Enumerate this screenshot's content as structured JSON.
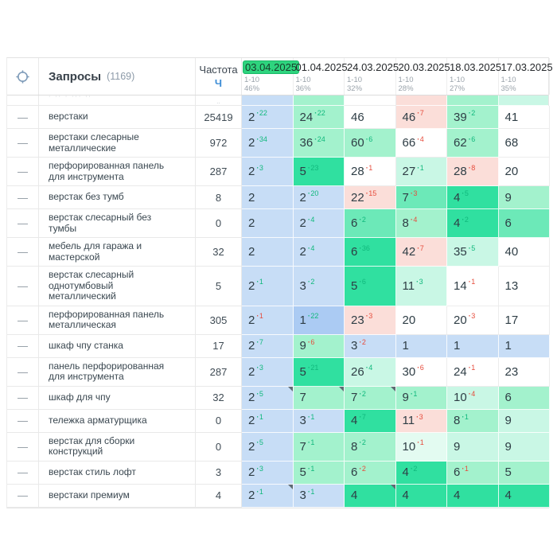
{
  "header": {
    "queries_label": "Запросы",
    "queries_count": "(1169)",
    "frequency_label": "Частота",
    "frequency_unit": "Ч",
    "range_label": "1-10",
    "dates": [
      {
        "date": "03.04.2025",
        "top10_percent": "46%",
        "selected": true
      },
      {
        "date": "01.04.2025",
        "top10_percent": "36%",
        "selected": false
      },
      {
        "date": "24.03.2025",
        "top10_percent": "32%",
        "selected": false
      },
      {
        "date": "20.03.2025",
        "top10_percent": "28%",
        "selected": false
      },
      {
        "date": "18.03.2025",
        "top10_percent": "27%",
        "selected": false
      },
      {
        "date": "17.03.2025",
        "top10_percent": "35%",
        "selected": false
      }
    ]
  },
  "icons": {
    "target_icon": "target-crosshair",
    "row_handle": "—"
  },
  "colors": {
    "selected_date_bg": "#2ed47e",
    "delta_up": "#10b87c",
    "delta_down": "#e64c3c",
    "B": "#c7ddf6",
    "B2": "#abcbf3",
    "W": "#ffffff",
    "P": "#fbded9",
    "G1": "#e3fbf1",
    "G2": "#c9f7e5",
    "G3": "#a3f2cd",
    "G4": "#6ce9b8",
    "G5": "#30e0a0"
  },
  "partial_row": {
    "cells": [
      {
        "bg": "B"
      },
      {
        "bg": "G3"
      },
      {
        "bg": "W"
      },
      {
        "bg": "P"
      },
      {
        "bg": "G3"
      },
      {
        "bg": "G2"
      }
    ]
  },
  "rows": [
    {
      "query": "верстаки",
      "frequency": "25419",
      "cells": [
        {
          "pos": "2",
          "d": "22",
          "dir": "up",
          "bg": "B"
        },
        {
          "pos": "24",
          "d": "22",
          "dir": "up",
          "bg": "G3"
        },
        {
          "pos": "46",
          "bg": "W"
        },
        {
          "pos": "46",
          "d": "7",
          "dir": "down",
          "bg": "P"
        },
        {
          "pos": "39",
          "d": "2",
          "dir": "up",
          "bg": "G3"
        },
        {
          "pos": "41",
          "bg": "W"
        }
      ]
    },
    {
      "query": "верстаки слесарные металлические",
      "frequency": "972",
      "cells": [
        {
          "pos": "2",
          "d": "34",
          "dir": "up",
          "bg": "B"
        },
        {
          "pos": "36",
          "d": "24",
          "dir": "up",
          "bg": "G3"
        },
        {
          "pos": "60",
          "d": "6",
          "dir": "up",
          "bg": "G3"
        },
        {
          "pos": "66",
          "d": "4",
          "dir": "down",
          "bg": "W"
        },
        {
          "pos": "62",
          "d": "6",
          "dir": "up",
          "bg": "G3"
        },
        {
          "pos": "68",
          "bg": "W"
        }
      ]
    },
    {
      "query": "перфорированная панель для инструмента",
      "frequency": "287",
      "cells": [
        {
          "pos": "2",
          "d": "3",
          "dir": "up",
          "bg": "B"
        },
        {
          "pos": "5",
          "d": "23",
          "dir": "up",
          "bg": "G5"
        },
        {
          "pos": "28",
          "d": "1",
          "dir": "down",
          "bg": "W"
        },
        {
          "pos": "27",
          "d": "1",
          "dir": "up",
          "bg": "G2"
        },
        {
          "pos": "28",
          "d": "8",
          "dir": "down",
          "bg": "P"
        },
        {
          "pos": "20",
          "bg": "W"
        }
      ]
    },
    {
      "query": "верстак без тумб",
      "frequency": "8",
      "cells": [
        {
          "pos": "2",
          "bg": "B"
        },
        {
          "pos": "2",
          "d": "20",
          "dir": "up",
          "bg": "B"
        },
        {
          "pos": "22",
          "d": "15",
          "dir": "down",
          "bg": "P"
        },
        {
          "pos": "7",
          "d": "3",
          "dir": "down",
          "bg": "G4"
        },
        {
          "pos": "4",
          "d": "5",
          "dir": "up",
          "bg": "G5"
        },
        {
          "pos": "9",
          "bg": "G3"
        }
      ]
    },
    {
      "query": "верстак слесарный без тумбы",
      "frequency": "0",
      "cells": [
        {
          "pos": "2",
          "bg": "B"
        },
        {
          "pos": "2",
          "d": "4",
          "dir": "up",
          "bg": "B"
        },
        {
          "pos": "6",
          "d": "2",
          "dir": "up",
          "bg": "G4"
        },
        {
          "pos": "8",
          "d": "4",
          "dir": "down",
          "bg": "G3"
        },
        {
          "pos": "4",
          "d": "2",
          "dir": "up",
          "bg": "G5"
        },
        {
          "pos": "6",
          "bg": "G4"
        }
      ]
    },
    {
      "query": "мебель для гаража и мастерской",
      "frequency": "32",
      "cells": [
        {
          "pos": "2",
          "bg": "B"
        },
        {
          "pos": "2",
          "d": "4",
          "dir": "up",
          "bg": "B"
        },
        {
          "pos": "6",
          "d": "36",
          "dir": "up",
          "bg": "G5"
        },
        {
          "pos": "42",
          "d": "7",
          "dir": "down",
          "bg": "P"
        },
        {
          "pos": "35",
          "d": "5",
          "dir": "up",
          "bg": "G2"
        },
        {
          "pos": "40",
          "bg": "W"
        }
      ]
    },
    {
      "query": "верстак слесарный однотумбовый металлический",
      "frequency": "5",
      "cells": [
        {
          "pos": "2",
          "d": "1",
          "dir": "up",
          "bg": "B"
        },
        {
          "pos": "3",
          "d": "2",
          "dir": "up",
          "bg": "B"
        },
        {
          "pos": "5",
          "d": "6",
          "dir": "up",
          "bg": "G5"
        },
        {
          "pos": "11",
          "d": "3",
          "dir": "up",
          "bg": "G2"
        },
        {
          "pos": "14",
          "d": "1",
          "dir": "down",
          "bg": "W"
        },
        {
          "pos": "13",
          "bg": "W"
        }
      ]
    },
    {
      "query": "перфорированная панель металлическая",
      "frequency": "305",
      "cells": [
        {
          "pos": "2",
          "d": "1",
          "dir": "down",
          "bg": "B"
        },
        {
          "pos": "1",
          "d": "22",
          "dir": "up",
          "bg": "B2"
        },
        {
          "pos": "23",
          "d": "3",
          "dir": "down",
          "bg": "P"
        },
        {
          "pos": "20",
          "bg": "W"
        },
        {
          "pos": "20",
          "d": "3",
          "dir": "down",
          "bg": "W"
        },
        {
          "pos": "17",
          "bg": "W"
        }
      ]
    },
    {
      "query": "шкаф чпу станка",
      "frequency": "17",
      "cells": [
        {
          "pos": "2",
          "d": "7",
          "dir": "up",
          "bg": "B"
        },
        {
          "pos": "9",
          "d": "6",
          "dir": "down",
          "bg": "G3"
        },
        {
          "pos": "3",
          "d": "2",
          "dir": "down",
          "bg": "B"
        },
        {
          "pos": "1",
          "bg": "B"
        },
        {
          "pos": "1",
          "bg": "B"
        },
        {
          "pos": "1",
          "bg": "B"
        }
      ]
    },
    {
      "query": "панель перфорированная для инструмента",
      "frequency": "287",
      "cells": [
        {
          "pos": "2",
          "d": "3",
          "dir": "up",
          "bg": "B"
        },
        {
          "pos": "5",
          "d": "21",
          "dir": "up",
          "bg": "G5"
        },
        {
          "pos": "26",
          "d": "4",
          "dir": "up",
          "bg": "G2"
        },
        {
          "pos": "30",
          "d": "6",
          "dir": "down",
          "bg": "W"
        },
        {
          "pos": "24",
          "d": "1",
          "dir": "down",
          "bg": "W"
        },
        {
          "pos": "23",
          "bg": "W"
        }
      ]
    },
    {
      "query": "шкаф для чпу",
      "frequency": "32",
      "cells": [
        {
          "pos": "2",
          "d": "5",
          "dir": "up",
          "bg": "B",
          "mark": true
        },
        {
          "pos": "7",
          "bg": "G3",
          "mark": true
        },
        {
          "pos": "7",
          "d": "2",
          "dir": "up",
          "bg": "G3",
          "mark": true
        },
        {
          "pos": "9",
          "d": "1",
          "dir": "up",
          "bg": "G3"
        },
        {
          "pos": "10",
          "d": "4",
          "dir": "down",
          "bg": "G2"
        },
        {
          "pos": "6",
          "bg": "G3"
        }
      ]
    },
    {
      "query": "тележка арматурщика",
      "frequency": "0",
      "cells": [
        {
          "pos": "2",
          "d": "1",
          "dir": "up",
          "bg": "B"
        },
        {
          "pos": "3",
          "d": "1",
          "dir": "up",
          "bg": "B"
        },
        {
          "pos": "4",
          "d": "7",
          "dir": "up",
          "bg": "G5"
        },
        {
          "pos": "11",
          "d": "3",
          "dir": "down",
          "bg": "P"
        },
        {
          "pos": "8",
          "d": "1",
          "dir": "up",
          "bg": "G3"
        },
        {
          "pos": "9",
          "bg": "G2"
        }
      ]
    },
    {
      "query": "верстак для сборки конструкций",
      "frequency": "0",
      "cells": [
        {
          "pos": "2",
          "d": "5",
          "dir": "up",
          "bg": "B"
        },
        {
          "pos": "7",
          "d": "1",
          "dir": "up",
          "bg": "G3"
        },
        {
          "pos": "8",
          "d": "2",
          "dir": "up",
          "bg": "G3"
        },
        {
          "pos": "10",
          "d": "1",
          "dir": "down",
          "bg": "G1"
        },
        {
          "pos": "9",
          "bg": "G2"
        },
        {
          "pos": "9",
          "bg": "G2"
        }
      ]
    },
    {
      "query": "верстак стиль лофт",
      "frequency": "3",
      "cells": [
        {
          "pos": "2",
          "d": "3",
          "dir": "up",
          "bg": "B"
        },
        {
          "pos": "5",
          "d": "1",
          "dir": "up",
          "bg": "G3"
        },
        {
          "pos": "6",
          "d": "2",
          "dir": "down",
          "bg": "G3"
        },
        {
          "pos": "4",
          "d": "2",
          "dir": "up",
          "bg": "G5"
        },
        {
          "pos": "6",
          "d": "1",
          "dir": "down",
          "bg": "G3"
        },
        {
          "pos": "5",
          "bg": "G3"
        }
      ]
    },
    {
      "query": "верстаки премиум",
      "frequency": "4",
      "cells": [
        {
          "pos": "2",
          "d": "1",
          "dir": "up",
          "bg": "B",
          "mark": true
        },
        {
          "pos": "3",
          "d": "1",
          "dir": "up",
          "bg": "B"
        },
        {
          "pos": "4",
          "bg": "G5",
          "mark": true
        },
        {
          "pos": "4",
          "bg": "G5"
        },
        {
          "pos": "4",
          "bg": "G5"
        },
        {
          "pos": "4",
          "bg": "G5"
        }
      ]
    }
  ]
}
